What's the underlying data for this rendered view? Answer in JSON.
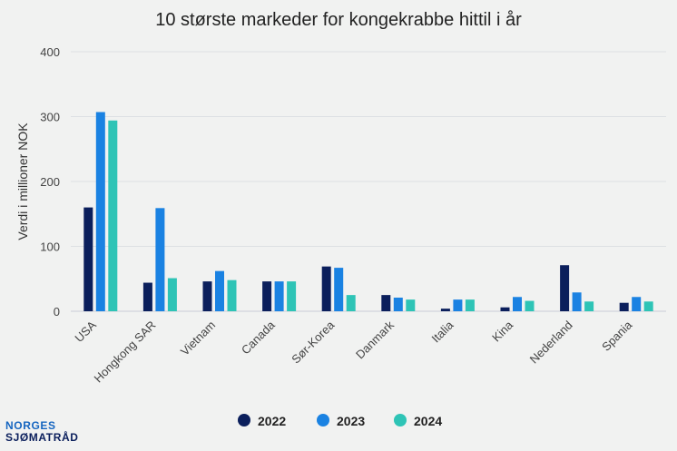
{
  "chart_data": {
    "type": "bar",
    "title": "10 største markeder for kongekrabbe hittil i år",
    "ylabel": "Verdi i millioner NOK",
    "xlabel": "",
    "ylim": [
      0,
      400
    ],
    "yticks": [
      "0",
      "100",
      "200",
      "300",
      "400"
    ],
    "grid": true,
    "legend_position": "bottom",
    "categories": [
      "USA",
      "Hongkong SAR",
      "Vietnam",
      "Canada",
      "Sør-Korea",
      "Danmark",
      "Italia",
      "Kina",
      "Nederland",
      "Spania"
    ],
    "series": [
      {
        "name": "2022",
        "color": "#0b1f5c",
        "values": [
          160,
          44,
          46,
          46,
          69,
          25,
          4,
          6,
          71,
          13
        ]
      },
      {
        "name": "2023",
        "color": "#1a82e2",
        "values": [
          307,
          159,
          62,
          46,
          67,
          21,
          18,
          22,
          29,
          22
        ]
      },
      {
        "name": "2024",
        "color": "#2ec4b6",
        "values": [
          294,
          51,
          48,
          46,
          25,
          18,
          18,
          16,
          15,
          15
        ]
      }
    ]
  },
  "brand": {
    "line1": "NORGES",
    "line2": "SJØMATRÅD"
  }
}
